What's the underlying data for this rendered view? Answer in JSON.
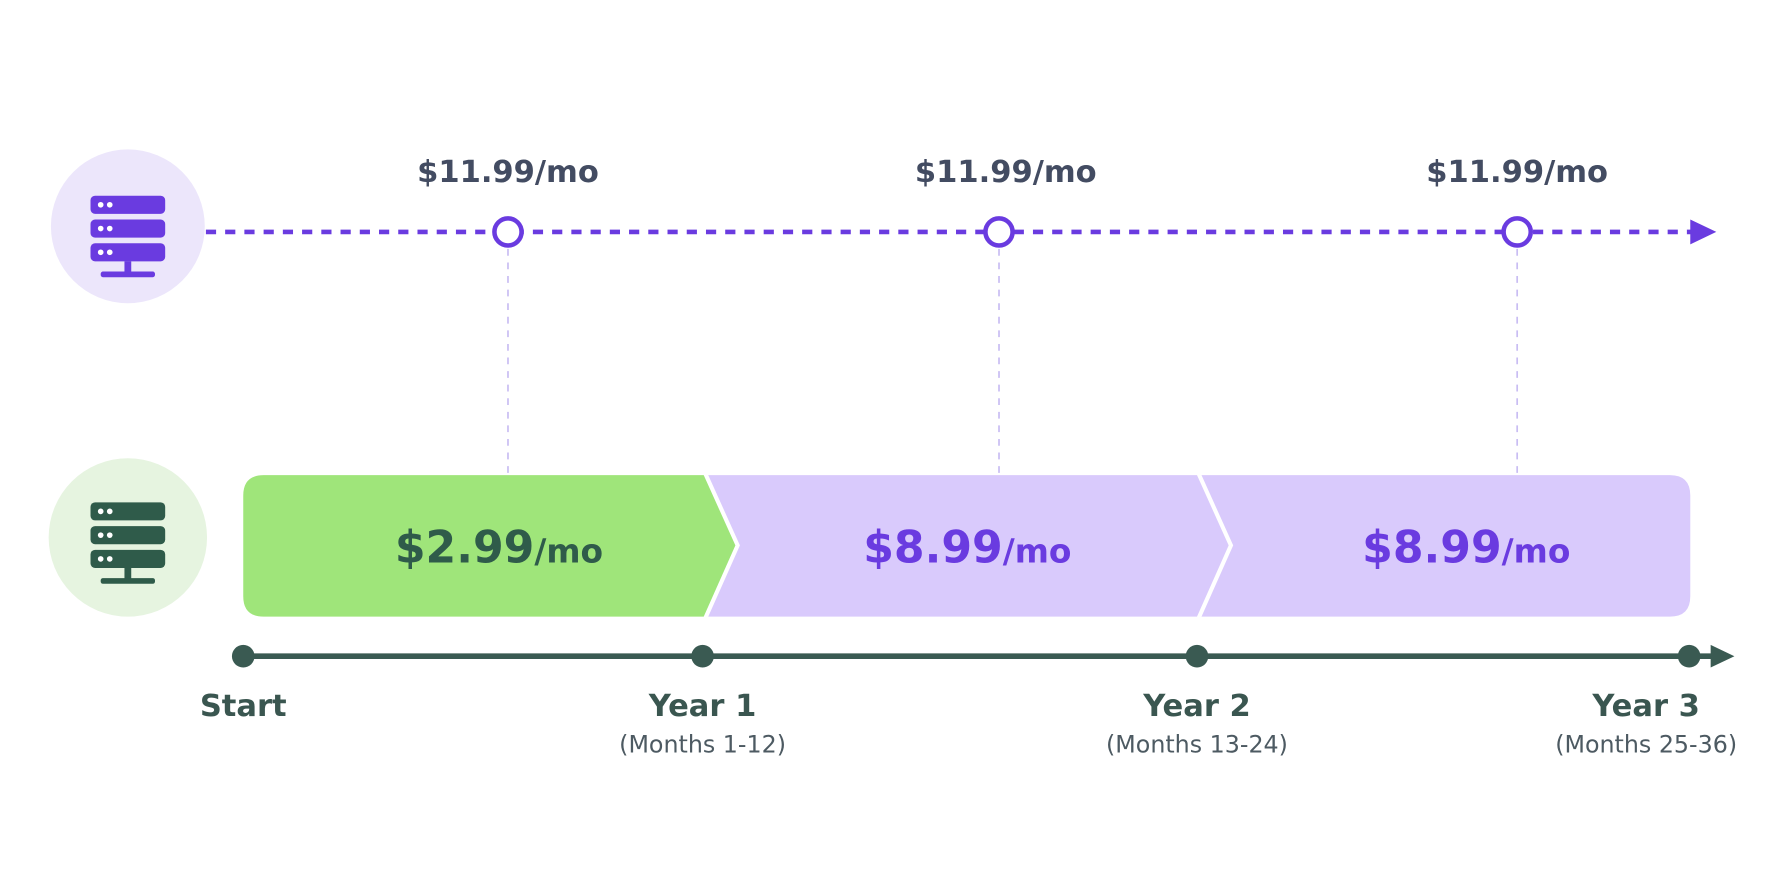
{
  "top_plan": {
    "prices": [
      "$11.99/mo",
      "$11.99/mo",
      "$11.99/mo"
    ]
  },
  "promo_plan": {
    "segments": [
      {
        "amount": "$2.99",
        "unit": "/mo"
      },
      {
        "amount": "$8.99",
        "unit": "/mo"
      },
      {
        "amount": "$8.99",
        "unit": "/mo"
      }
    ]
  },
  "timeline": [
    {
      "label": "Start"
    },
    {
      "label": "Year 1",
      "sublabel": "(Months 1-12)"
    },
    {
      "label": "Year 2",
      "sublabel": "(Months 13-24)"
    },
    {
      "label": "Year 3",
      "sublabel": "(Months 25-36)"
    }
  ]
}
